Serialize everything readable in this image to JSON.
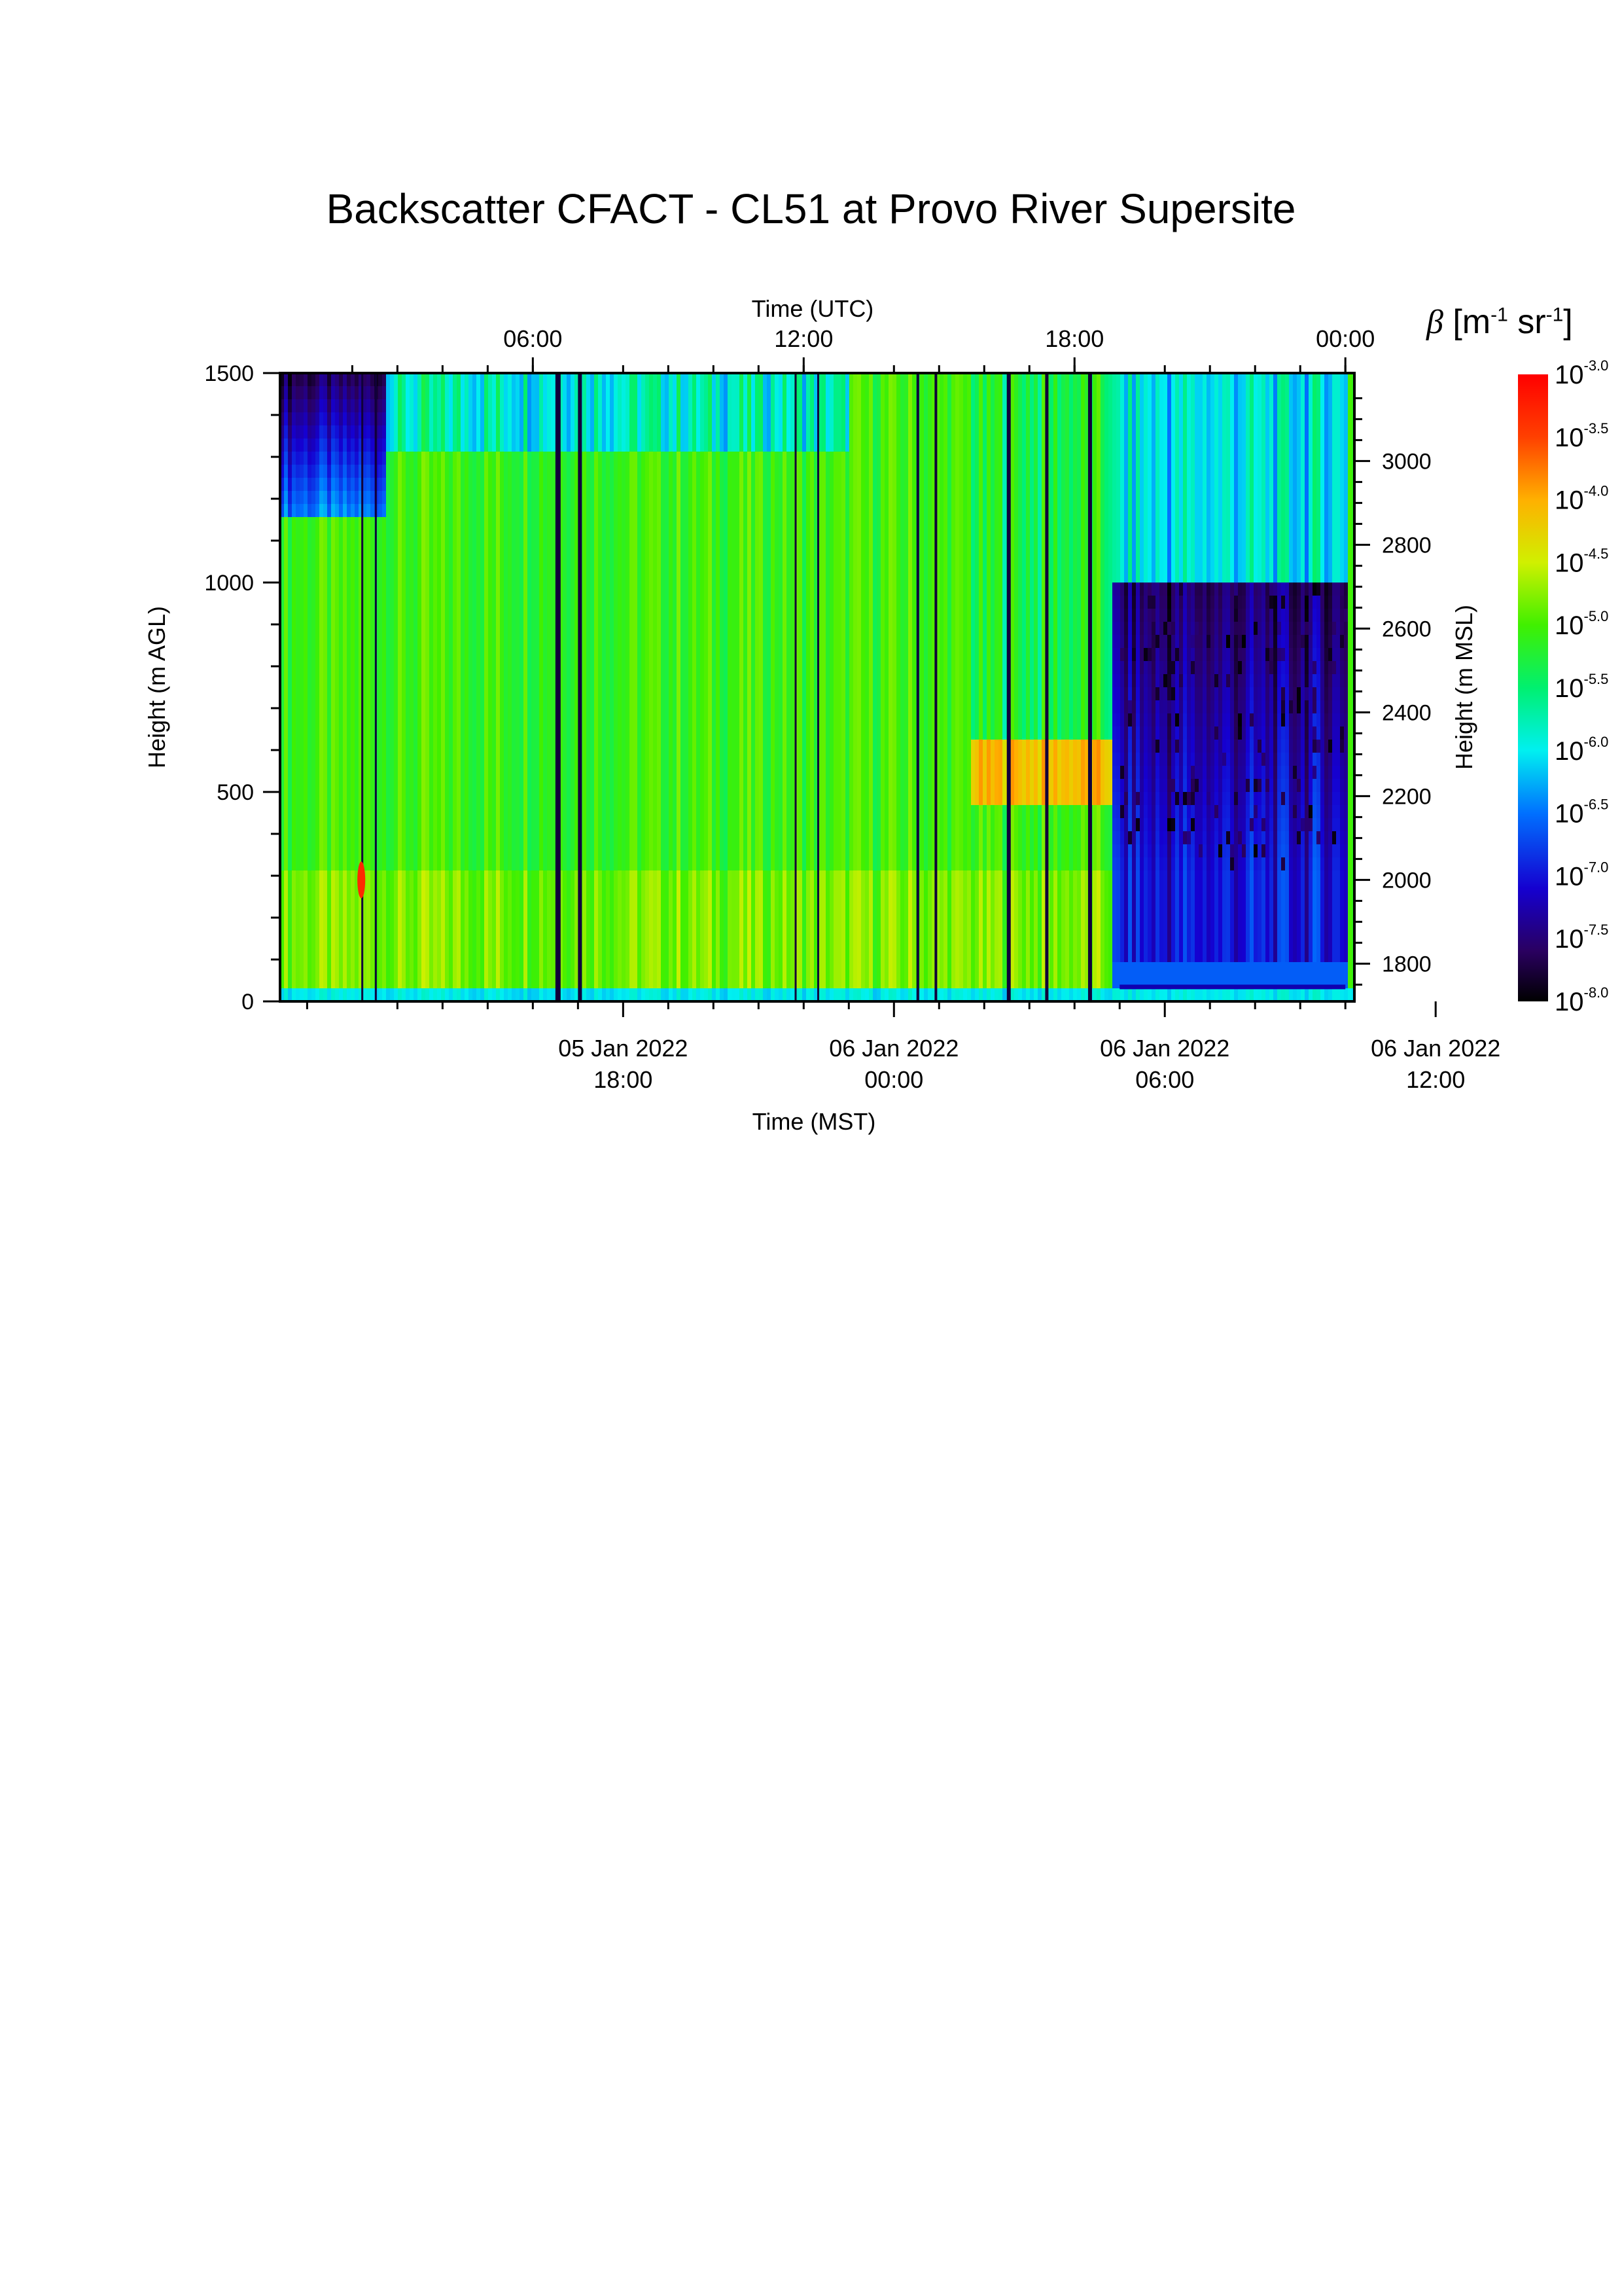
{
  "title": "Backscatter CFACT - CL51 at Provo River Supersite",
  "chart_data": {
    "type": "heatmap",
    "title": "Backscatter CFACT - CL51 at Provo River Supersite",
    "xlabel_bottom": "Time (MST)",
    "xlabel_top": "Time (UTC)",
    "ylabel_left": "Height (m AGL)",
    "ylabel_right": "Height (m MSL)",
    "x_range_mst_hours": [
      -7.6,
      16.2
    ],
    "bottom_ticks": [
      {
        "line1": "05 Jan 2022",
        "line2": "18:00",
        "x": 0
      },
      {
        "line1": "06 Jan 2022",
        "line2": "00:00",
        "x": 6
      },
      {
        "line1": "06 Jan 2022",
        "line2": "06:00",
        "x": 12
      },
      {
        "line1": "06 Jan 2022",
        "line2": "12:00",
        "x": 18
      }
    ],
    "top_ticks": [
      {
        "label": "06:00",
        "x": 5.0
      },
      {
        "label": "12:00",
        "x": 11.0
      },
      {
        "label": "18:00",
        "x": 17.0
      },
      {
        "label": "00:00",
        "x": 23.0
      }
    ],
    "x_offset_note": "",
    "ylim_agl": [
      0,
      1500
    ],
    "left_ticks": [
      0,
      500,
      1000,
      1500
    ],
    "right_ticks": [
      1800,
      2000,
      2200,
      2400,
      2600,
      2800,
      3000
    ],
    "ylim_msl": [
      1710,
      3210
    ],
    "colorbar": {
      "label": "β [m⁻¹ sr⁻¹]",
      "range_log10": [
        -8.0,
        -3.0
      ],
      "tick_labels": [
        "-3.0",
        "-3.5",
        "-4.0",
        "-4.5",
        "-5.0",
        "-5.5",
        "-6.0",
        "-6.5",
        "-7.0",
        "-7.5",
        "-8.0"
      ],
      "base": "10"
    }
  }
}
